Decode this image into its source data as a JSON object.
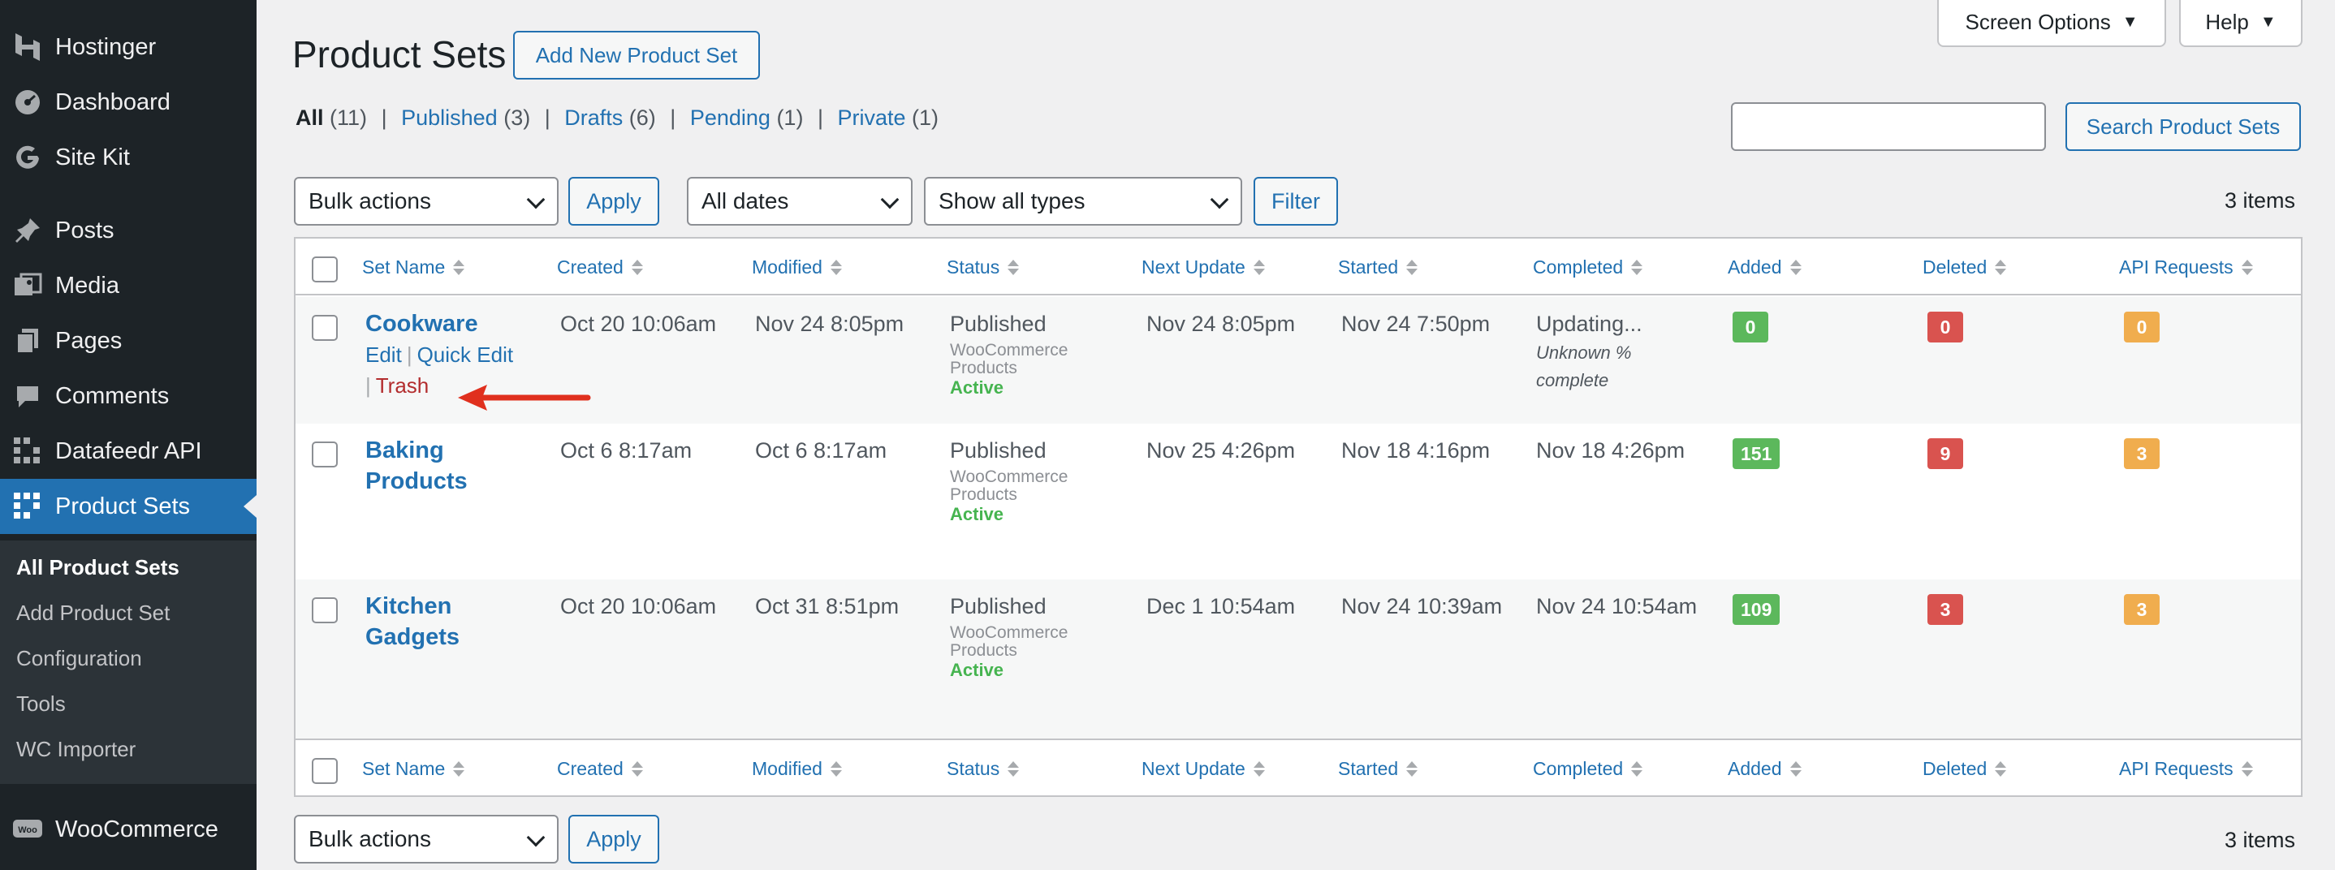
{
  "sidebar": {
    "items": [
      {
        "label": "Hostinger",
        "icon": "hostinger-logo-icon"
      },
      {
        "label": "Dashboard",
        "icon": "dashboard-gauge-icon"
      },
      {
        "label": "Site Kit",
        "icon": "google-g-icon"
      },
      {
        "label": "Posts",
        "icon": "pushpin-icon"
      },
      {
        "label": "Media",
        "icon": "media-icon"
      },
      {
        "label": "Pages",
        "icon": "pages-icon"
      },
      {
        "label": "Comments",
        "icon": "comment-bubble-icon"
      },
      {
        "label": "Datafeedr API",
        "icon": "datafeedr-grid-icon"
      },
      {
        "label": "Product Sets",
        "icon": "product-sets-grid-icon"
      },
      {
        "label": "WooCommerce",
        "icon": "woocommerce-icon"
      }
    ],
    "submenu": [
      {
        "label": "All Product Sets"
      },
      {
        "label": "Add Product Set"
      },
      {
        "label": "Configuration"
      },
      {
        "label": "Tools"
      },
      {
        "label": "WC Importer"
      }
    ]
  },
  "header": {
    "title": "Product Sets",
    "add_new_label": "Add New Product Set",
    "screen_options_label": "Screen Options",
    "help_label": "Help"
  },
  "views": {
    "all": {
      "label": "All",
      "count": "(11)"
    },
    "published": {
      "label": "Published",
      "count": "(3)"
    },
    "drafts": {
      "label": "Drafts",
      "count": "(6)"
    },
    "pending": {
      "label": "Pending",
      "count": "(1)"
    },
    "private": {
      "label": "Private",
      "count": "(1)"
    },
    "sep": "|"
  },
  "search": {
    "value": "",
    "button_label": "Search Product Sets"
  },
  "tablenav": {
    "bulk_actions": "Bulk actions",
    "apply_label": "Apply",
    "dates": "All dates",
    "types": "Show all types",
    "filter_label": "Filter",
    "items_count": "3 items"
  },
  "columns": [
    "Set Name",
    "Created",
    "Modified",
    "Status",
    "Next Update",
    "Started",
    "Completed",
    "Added",
    "Deleted",
    "API Requests"
  ],
  "rows": [
    {
      "name_line1": "Cookware",
      "name_line2": "",
      "actions": {
        "edit": "Edit",
        "quick_edit": "Quick Edit",
        "trash": "Trash",
        "sep": "|"
      },
      "created": "Oct 20 10:06am",
      "modified": "Nov 24 8:05pm",
      "status": "Published",
      "status_type_1": "WooCommerce",
      "status_type_2": "Products",
      "status_state": "Active",
      "next_update": "Nov 24 8:05pm",
      "started": "Nov 24 7:50pm",
      "completed": "Updating...",
      "completed_note_1": "Unknown %",
      "completed_note_2": "complete",
      "added": "0",
      "deleted": "0",
      "api_requests": "0"
    },
    {
      "name_line1": "Baking",
      "name_line2": "Products",
      "created": "Oct 6 8:17am",
      "modified": "Oct 6 8:17am",
      "status": "Published",
      "status_type_1": "WooCommerce",
      "status_type_2": "Products",
      "status_state": "Active",
      "next_update": "Nov 25 4:26pm",
      "started": "Nov 18 4:16pm",
      "completed": "Nov 18 4:26pm",
      "added": "151",
      "deleted": "9",
      "api_requests": "3"
    },
    {
      "name_line1": "Kitchen",
      "name_line2": "Gadgets",
      "created": "Oct 20 10:06am",
      "modified": "Oct 31 8:51pm",
      "status": "Published",
      "status_type_1": "WooCommerce",
      "status_type_2": "Products",
      "status_state": "Active",
      "next_update": "Dec 1 10:54am",
      "started": "Nov 24 10:39am",
      "completed": "Nov 24 10:54am",
      "added": "109",
      "deleted": "3",
      "api_requests": "3"
    }
  ],
  "colors": {
    "sidebar_bg": "#1d2327",
    "submenu_bg": "#2c3338",
    "accent": "#2271b1",
    "badge_green": "#5cb85c",
    "badge_red": "#d9534f",
    "badge_orange": "#f0ad4e",
    "trash": "#b32d2e",
    "annotation_arrow": "#e0301e"
  }
}
